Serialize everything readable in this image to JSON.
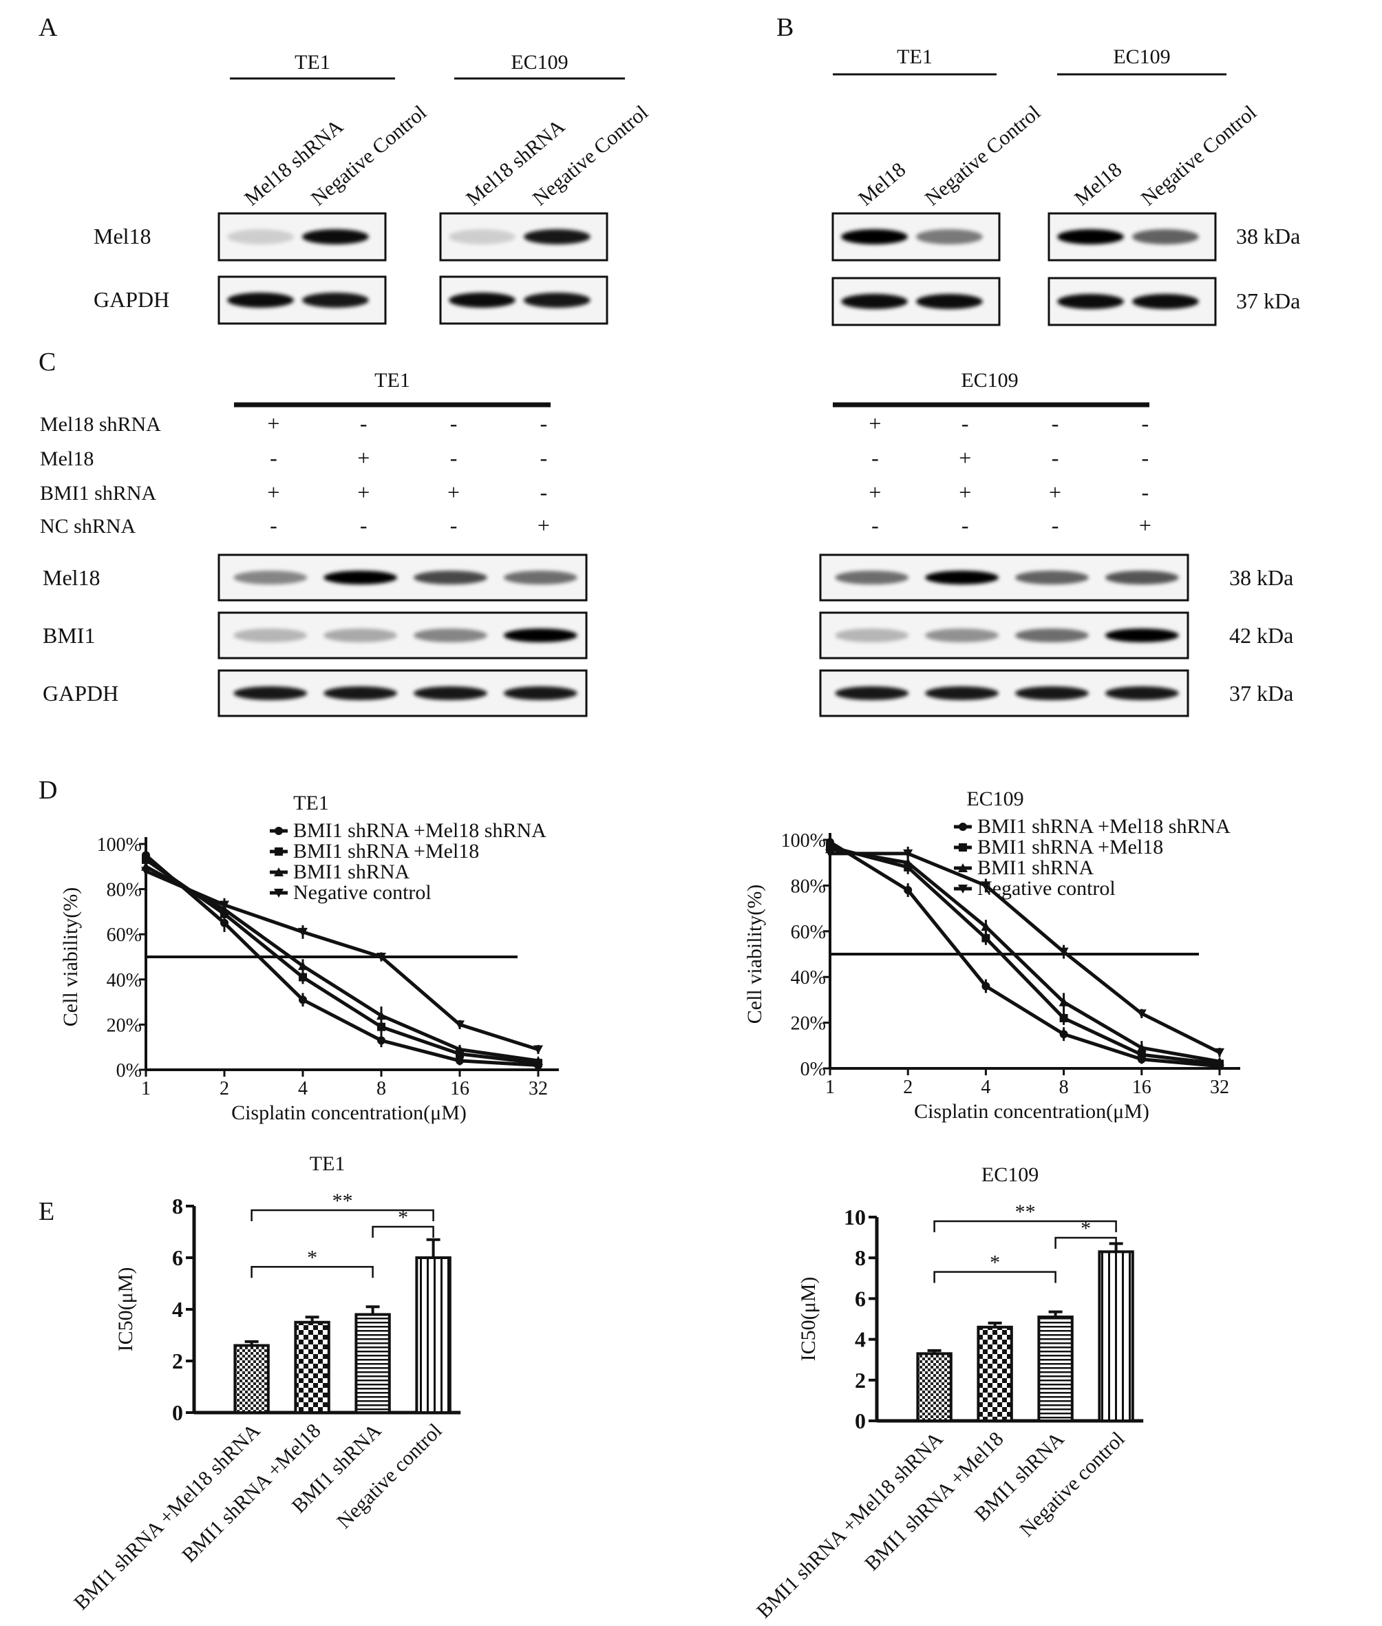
{
  "panelA": {
    "letter": "A",
    "groups": [
      {
        "title": "TE1",
        "lanes": [
          "Mel18 shRNA",
          "Negative Control"
        ],
        "bands": [
          [
            0.15,
            0.95
          ],
          [
            0.95,
            0.9
          ]
        ]
      },
      {
        "title": "EC109",
        "lanes": [
          "Mel18 shRNA",
          "Negative Control"
        ],
        "bands": [
          [
            0.15,
            0.9
          ],
          [
            0.95,
            0.9
          ]
        ]
      }
    ],
    "rows": [
      "Mel18",
      "GAPDH"
    ]
  },
  "panelB": {
    "letter": "B",
    "groups": [
      {
        "title": "TE1",
        "lanes": [
          "Mel18",
          "Negative Control"
        ],
        "bands": [
          [
            1.0,
            0.5
          ],
          [
            0.95,
            0.95
          ]
        ]
      },
      {
        "title": "EC109",
        "lanes": [
          "Mel18",
          "Negative Control"
        ],
        "bands": [
          [
            1.0,
            0.6
          ],
          [
            0.95,
            0.95
          ]
        ]
      }
    ],
    "rows": [
      "Mel18",
      "GAPDH"
    ],
    "kda": [
      "38 kDa",
      "37 kDa"
    ]
  },
  "panelC": {
    "letter": "C",
    "groups": [
      {
        "title": "TE1",
        "signs": [
          [
            "+",
            "-",
            "-",
            "-"
          ],
          [
            "-",
            "+",
            "-",
            "-"
          ],
          [
            "+",
            "+",
            "+",
            "-"
          ],
          [
            "-",
            "-",
            "-",
            "+"
          ]
        ],
        "bands": [
          [
            0.45,
            1.0,
            0.7,
            0.55
          ],
          [
            0.25,
            0.3,
            0.45,
            1.0
          ],
          [
            0.9,
            0.9,
            0.9,
            0.9
          ]
        ]
      },
      {
        "title": "EC109",
        "signs": [
          [
            "+",
            "-",
            "-",
            "-"
          ],
          [
            "-",
            "+",
            "-",
            "-"
          ],
          [
            "+",
            "+",
            "+",
            "-"
          ],
          [
            "-",
            "-",
            "-",
            "+"
          ]
        ],
        "bands": [
          [
            0.55,
            1.0,
            0.6,
            0.65
          ],
          [
            0.25,
            0.4,
            0.55,
            1.0
          ],
          [
            0.9,
            0.9,
            0.9,
            0.9
          ]
        ]
      }
    ],
    "conditions": [
      "Mel18 shRNA",
      "Mel18",
      "BMI1 shRNA",
      "NC shRNA"
    ],
    "rows": [
      "Mel18",
      "BMI1",
      "GAPDH"
    ],
    "kda": [
      "38 kDa",
      "42 kDa",
      "37 kDa"
    ]
  },
  "chart_data": [
    {
      "type": "line",
      "panel": "D",
      "title": "TE1",
      "xlabel": "Cisplatin concentration(μM)",
      "ylabel": "Cell viability(%)",
      "x_ticks": [
        "1",
        "2",
        "4",
        "8",
        "16",
        "32"
      ],
      "y_ticks": [
        "0%",
        "20%",
        "40%",
        "60%",
        "80%",
        "100%"
      ],
      "xscale": "log2",
      "ylim": [
        0,
        100
      ],
      "reference_line": 50,
      "legend_position": "top-right",
      "series": [
        {
          "name": "BMI1 shRNA +Mel18 shRNA",
          "x": [
            1,
            2,
            4,
            8,
            16,
            32
          ],
          "y": [
            95,
            65,
            31,
            13,
            4,
            2
          ],
          "err": [
            5,
            4,
            3,
            3,
            2,
            1
          ]
        },
        {
          "name": "BMI1 shRNA +Mel18",
          "x": [
            1,
            2,
            4,
            8,
            16,
            32
          ],
          "y": [
            93,
            69,
            41,
            19,
            7,
            3
          ],
          "err": [
            5,
            4,
            3,
            3,
            2,
            1
          ]
        },
        {
          "name": "BMI1 shRNA",
          "x": [
            1,
            2,
            4,
            8,
            16,
            32
          ],
          "y": [
            90,
            71,
            46,
            24,
            9,
            4
          ],
          "err": [
            4,
            3,
            3,
            4,
            2,
            1
          ]
        },
        {
          "name": "Negative control",
          "x": [
            1,
            2,
            4,
            8,
            16,
            32
          ],
          "y": [
            88,
            73,
            61,
            50,
            20,
            9
          ],
          "err": [
            4,
            3,
            3,
            2,
            2,
            2
          ]
        }
      ]
    },
    {
      "type": "line",
      "panel": "D",
      "title": "EC109",
      "xlabel": "Cisplatin concentration(μM)",
      "ylabel": "Cell viability(%)",
      "x_ticks": [
        "1",
        "2",
        "4",
        "8",
        "16",
        "32"
      ],
      "y_ticks": [
        "0%",
        "20%",
        "40%",
        "60%",
        "80%",
        "100%"
      ],
      "xscale": "log2",
      "ylim": [
        0,
        100
      ],
      "reference_line": 50,
      "legend_position": "top-right",
      "series": [
        {
          "name": "BMI1 shRNA +Mel18 shRNA",
          "x": [
            1,
            2,
            4,
            8,
            16,
            32
          ],
          "y": [
            99,
            78,
            36,
            15,
            4,
            1
          ],
          "err": [
            2,
            3,
            3,
            3,
            2,
            1
          ]
        },
        {
          "name": "BMI1 shRNA +Mel18",
          "x": [
            1,
            2,
            4,
            8,
            16,
            32
          ],
          "y": [
            97,
            88,
            57,
            22,
            6,
            2
          ],
          "err": [
            2,
            3,
            3,
            3,
            2,
            1
          ]
        },
        {
          "name": "BMI1 shRNA",
          "x": [
            1,
            2,
            4,
            8,
            16,
            32
          ],
          "y": [
            96,
            90,
            62,
            29,
            9,
            3
          ],
          "err": [
            2,
            3,
            3,
            4,
            3,
            1
          ]
        },
        {
          "name": "Negative control",
          "x": [
            1,
            2,
            4,
            8,
            16,
            32
          ],
          "y": [
            94,
            94,
            80,
            51,
            24,
            7
          ],
          "err": [
            2,
            3,
            3,
            3,
            2,
            2
          ]
        }
      ]
    },
    {
      "type": "bar",
      "panel": "E",
      "title": "TE1",
      "ylabel": "IC50(μM)",
      "categories": [
        "BMI1 shRNA +Mel18 shRNA",
        "BMI1 shRNA +Mel18",
        "BMI1 shRNA",
        "Negative control"
      ],
      "values": [
        2.6,
        3.5,
        3.8,
        6.0
      ],
      "err": [
        0.15,
        0.2,
        0.3,
        0.7
      ],
      "ylim": [
        0,
        8
      ],
      "y_ticks": [
        "0",
        "2",
        "4",
        "6",
        "8"
      ],
      "significance": [
        {
          "from": 0,
          "to": 3,
          "label": "**"
        },
        {
          "from": 2,
          "to": 3,
          "label": "*"
        },
        {
          "from": 0,
          "to": 2,
          "label": "*"
        }
      ]
    },
    {
      "type": "bar",
      "panel": "E",
      "title": "EC109",
      "ylabel": "IC50(μM)",
      "categories": [
        "BMI1 shRNA +Mel18 shRNA",
        "BMI1 shRNA +Mel18",
        "BMI1 shRNA",
        "Negative control"
      ],
      "values": [
        3.3,
        4.6,
        5.1,
        8.3
      ],
      "err": [
        0.15,
        0.2,
        0.25,
        0.4
      ],
      "ylim": [
        0,
        10
      ],
      "y_ticks": [
        "0",
        "2",
        "4",
        "6",
        "8",
        "10"
      ],
      "significance": [
        {
          "from": 0,
          "to": 3,
          "label": "**"
        },
        {
          "from": 2,
          "to": 3,
          "label": "*"
        },
        {
          "from": 0,
          "to": 2,
          "label": "*"
        }
      ]
    }
  ],
  "panel_letters": {
    "D": "D",
    "E": "E"
  }
}
